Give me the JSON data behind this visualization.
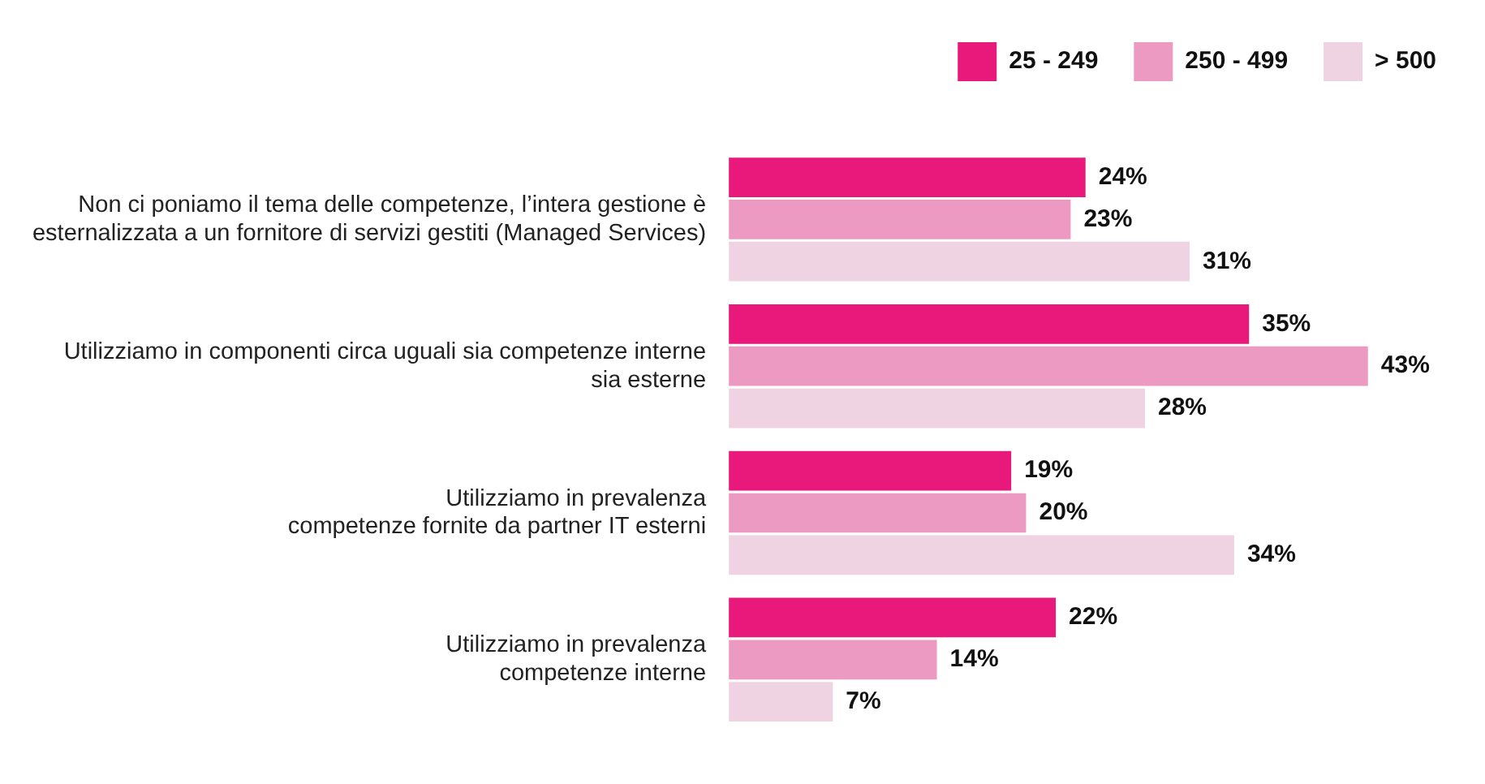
{
  "chart_data": {
    "type": "bar",
    "orientation": "horizontal",
    "legend": "top right",
    "grid": false,
    "tick_labels": "y",
    "categories": [
      "Non ci poniamo il tema delle competenze, l’intera gestione è\nesternalizzata a un fornitore di servizi gestiti (Managed Services)",
      "Utilizziamo in componenti circa uguali sia competenze interne\nsia esterne",
      "Utilizziamo in prevalenza\ncompetenze fornite da partner IT esterni",
      "Utilizziamo in prevalenza\ncompetenze interne"
    ],
    "series": [
      {
        "name": "25 - 249",
        "color": "#e8197a",
        "values": [
          24,
          35,
          19,
          22
        ],
        "value_labels": [
          "24%",
          "35%",
          "19%",
          "22%"
        ]
      },
      {
        "name": "250 - 499",
        "color": "#ed9ac2",
        "values": [
          23,
          43,
          20,
          14
        ],
        "value_labels": [
          "23%",
          "43%",
          "20%",
          "14%"
        ]
      },
      {
        "name": "> 500",
        "color": "#efd3e2",
        "values": [
          31,
          28,
          34,
          7
        ],
        "value_labels": [
          "31%",
          "28%",
          "34%",
          "7%"
        ]
      }
    ]
  }
}
